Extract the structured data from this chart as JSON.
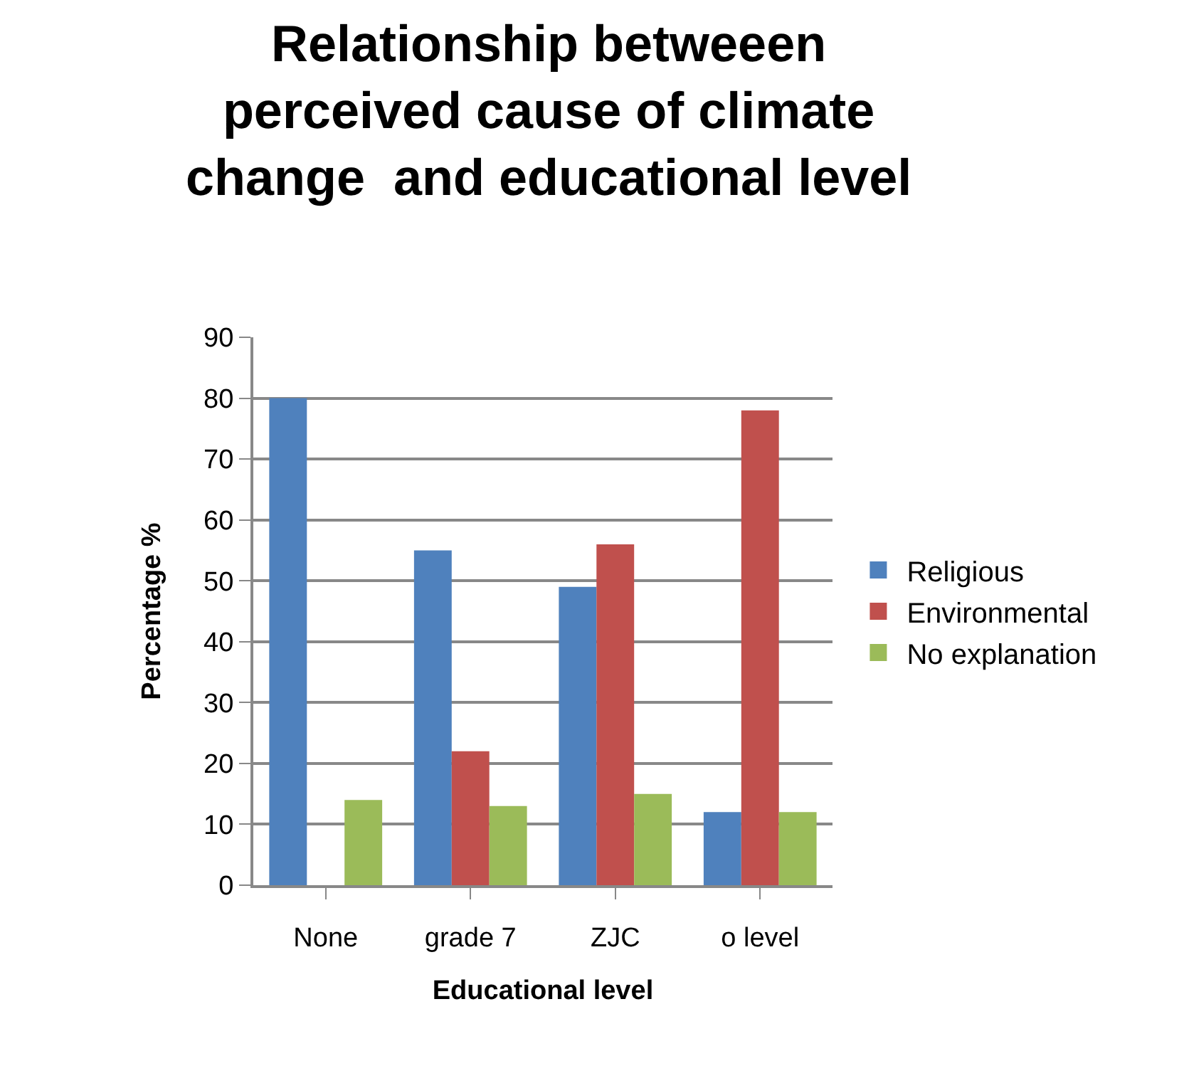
{
  "chart_data": {
    "type": "bar",
    "title": "Relationship betweeen\nperceived cause of climate\nchange  and educational level",
    "xlabel": "Educational level",
    "ylabel": "Percentage %",
    "categories": [
      "None",
      "grade 7",
      "ZJC",
      "o level"
    ],
    "series": [
      {
        "name": "Religious",
        "color": "#4f81bd",
        "values": [
          80,
          55,
          49,
          12
        ]
      },
      {
        "name": "Environmental",
        "color": "#c0504d",
        "values": [
          0,
          22,
          56,
          78
        ]
      },
      {
        "name": "No explanation",
        "color": "#9bbb59",
        "values": [
          14,
          13,
          15,
          12
        ]
      }
    ],
    "ylim": [
      0,
      90
    ],
    "yticks": [
      0,
      10,
      20,
      30,
      40,
      50,
      60,
      70,
      80,
      90
    ],
    "grid": "y",
    "legend": "right"
  }
}
